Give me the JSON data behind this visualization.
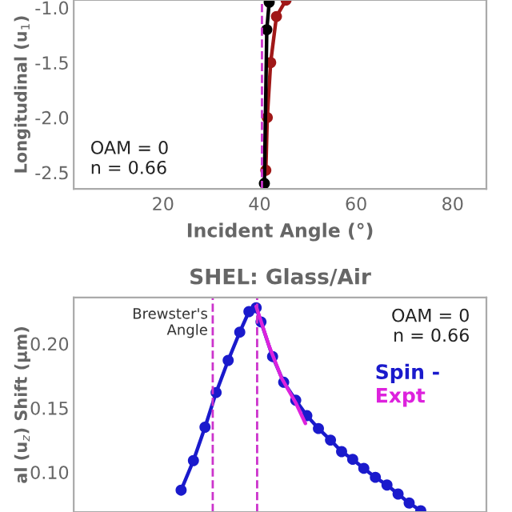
{
  "chart_data": [
    {
      "type": "line",
      "xlabel": "Incident Angle (°)",
      "ylabel": "Longitudinal (u$_{1}$)",
      "xlim": [
        1.5,
        87
      ],
      "xticks": [
        20,
        40,
        60,
        80
      ],
      "ylim": [
        -2.65,
        -0.93
      ],
      "yticks": [
        {
          "value": -1.0,
          "label": "-1.0"
        },
        {
          "value": -1.5,
          "label": "-1.5"
        },
        {
          "value": -2.0,
          "label": "-2.0"
        },
        {
          "value": -2.5,
          "label": "-2.5"
        }
      ],
      "series": [
        {
          "color": "#a01818",
          "x": [
            41.3,
            41.6,
            42.3,
            43.5,
            45.5
          ],
          "values": [
            -2.48,
            -2.0,
            -1.5,
            -1.08,
            -0.93
          ]
        },
        {
          "color": "#000000",
          "x": [
            41.0,
            41.5,
            42.0
          ],
          "values": [
            -2.6,
            -1.2,
            -0.95
          ]
        }
      ],
      "marker": "circle",
      "ref_lines": [
        {
          "axis": "x",
          "value": 40.5,
          "color": "#cc33cc",
          "line_style": "dashed"
        }
      ],
      "annotations": [
        "OAM = 0\nn = 0.66"
      ],
      "grid": false
    },
    {
      "type": "line",
      "title": "SHEL: Glass/Air",
      "ylabel": "al (u$_{z}$) Shift (μm)",
      "xlim": [
        1.5,
        87
      ],
      "ylim": [
        0.069,
        0.236
      ],
      "yticks": [
        {
          "value": 0.1,
          "label": "0.10"
        },
        {
          "value": 0.15,
          "label": "0.15"
        },
        {
          "value": 0.2,
          "label": "0.20"
        }
      ],
      "tick_labels": "y",
      "series": [
        {
          "name": "Spin -",
          "color": "#1a1acc",
          "marker": "circle",
          "x": [
            23.75,
            26.3,
            28.7,
            31.0,
            33.5,
            35.9,
            37.8,
            39.3,
            40.3,
            42.7,
            45.0,
            47.5,
            49.8,
            52.2,
            54.7,
            57.0,
            59.3,
            61.6,
            64.0,
            66.4,
            68.7,
            71.0,
            73.4
          ],
          "values": [
            0.086,
            0.109,
            0.135,
            0.162,
            0.187,
            0.209,
            0.225,
            0.228,
            0.217,
            0.19,
            0.17,
            0.156,
            0.144,
            0.134,
            0.125,
            0.116,
            0.11,
            0.103,
            0.096,
            0.09,
            0.083,
            0.076,
            0.07
          ]
        },
        {
          "name": "Expt",
          "color": "#dd22dd",
          "marker": "none",
          "x": [
            39.3,
            42.0,
            44.6,
            47.5,
            49.5
          ],
          "values": [
            0.229,
            0.198,
            0.173,
            0.154,
            0.138
          ]
        }
      ],
      "ref_lines": [
        {
          "axis": "x",
          "value": 30.3,
          "label": "Brewster's\nAngle",
          "color": "#cc33cc",
          "line_style": "dashed"
        },
        {
          "axis": "x",
          "value": 39.5,
          "color": "#cc33cc",
          "line_style": "dashed"
        }
      ],
      "annotations": [
        "OAM = 0\nn = 0.66"
      ],
      "grid": false
    }
  ]
}
